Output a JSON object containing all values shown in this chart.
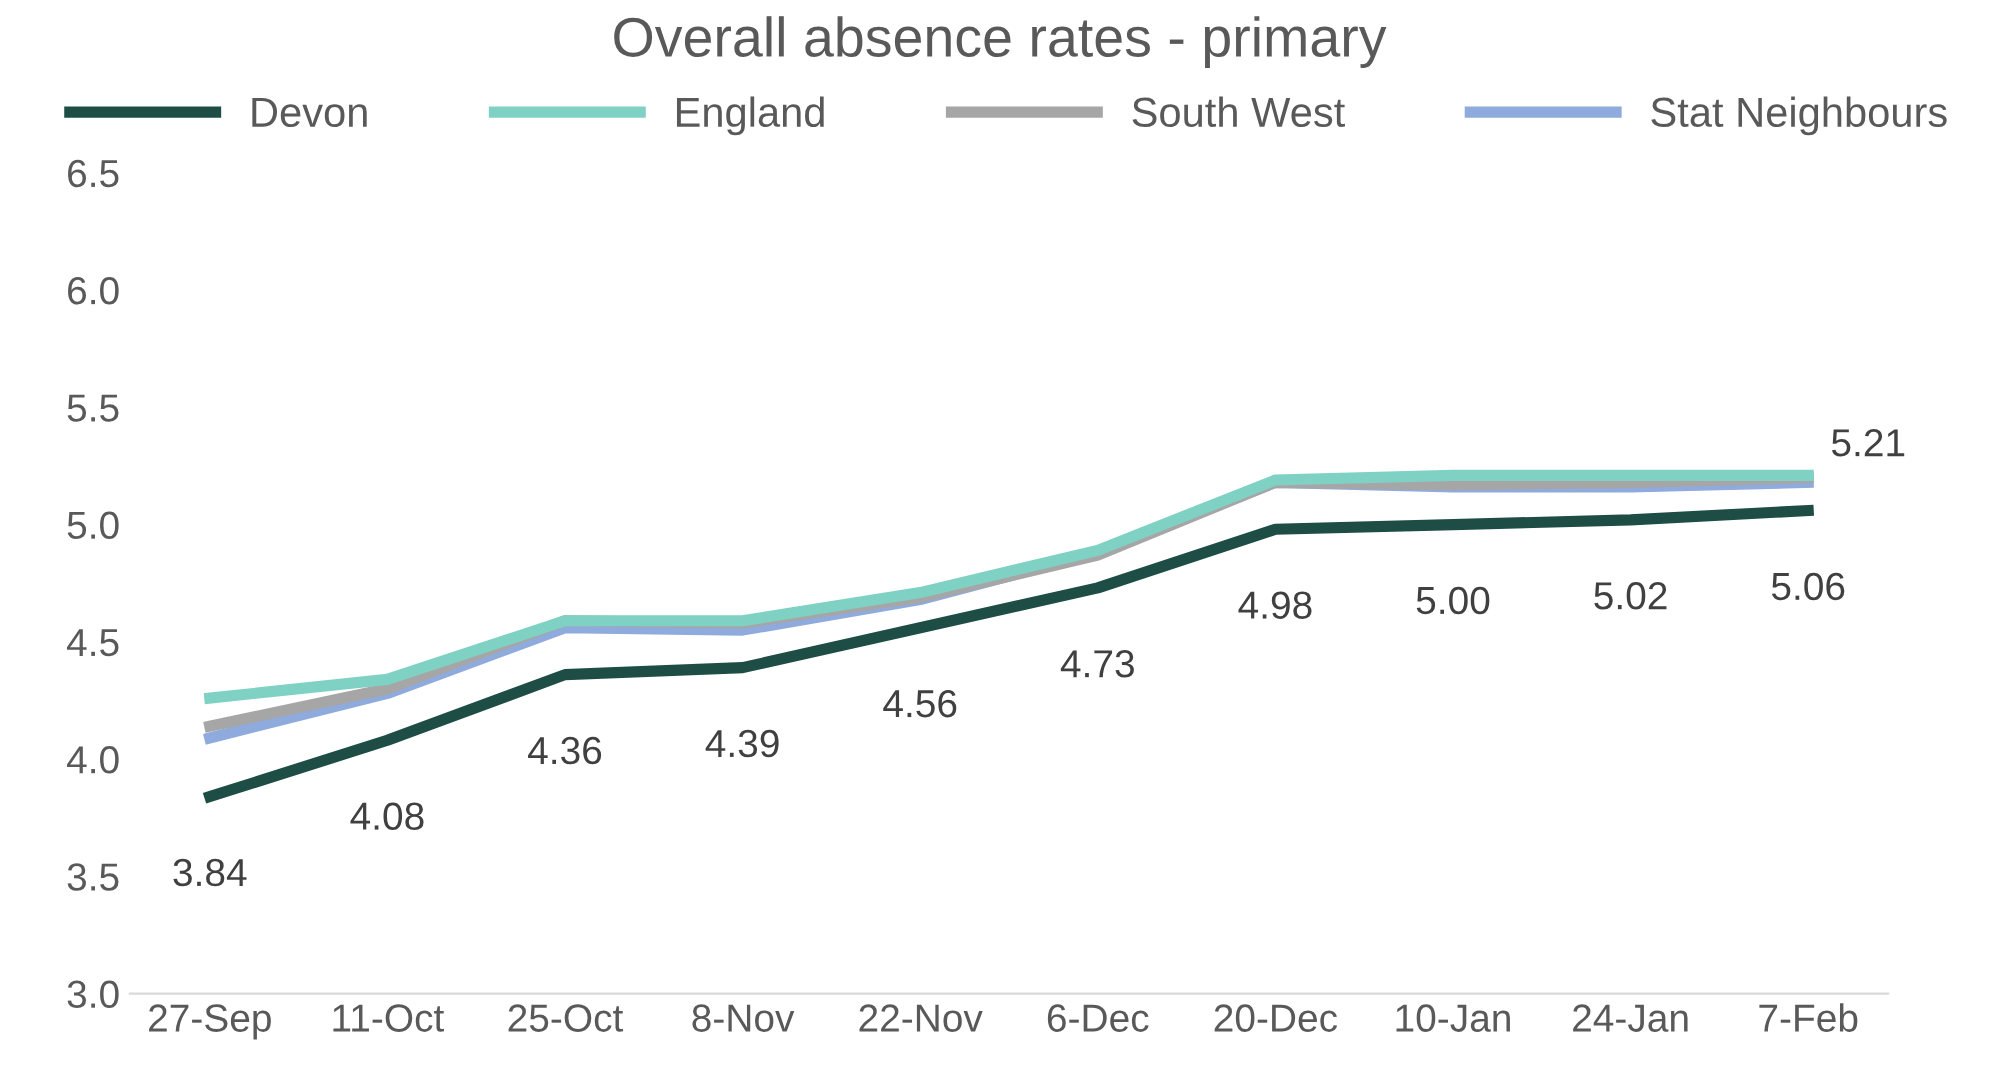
{
  "chart_data": {
    "type": "line",
    "title": "Overall absence rates - primary",
    "categories": [
      "27-Sep",
      "11-Oct",
      "25-Oct",
      "8-Nov",
      "22-Nov",
      "6-Dec",
      "20-Dec",
      "10-Jan",
      "24-Jan",
      "7-Feb"
    ],
    "series": [
      {
        "name": "Devon",
        "color": "#1e4d45",
        "values": [
          3.84,
          4.08,
          4.36,
          4.39,
          4.56,
          4.73,
          4.98,
          5.0,
          5.02,
          5.06
        ],
        "data_labels": true,
        "value_labels": [
          "3.84",
          "4.08",
          "4.36",
          "4.39",
          "4.56",
          "4.73",
          "4.98",
          "5.00",
          "5.02",
          "5.06"
        ]
      },
      {
        "name": "England",
        "color": "#7fd1c4",
        "values": [
          4.26,
          4.34,
          4.59,
          4.59,
          4.71,
          4.89,
          5.19,
          5.21,
          5.21,
          5.21
        ]
      },
      {
        "name": "South West",
        "color": "#a6a6a6",
        "values": [
          4.14,
          4.3,
          4.59,
          4.58,
          4.69,
          4.87,
          5.18,
          5.17,
          5.18,
          5.2
        ]
      },
      {
        "name": "Stat Neighbours",
        "color": "#8faadc",
        "values": [
          4.09,
          4.28,
          4.56,
          4.55,
          4.68,
          4.88,
          5.18,
          5.16,
          5.16,
          5.18
        ]
      }
    ],
    "annotations": [
      {
        "text": "5.21",
        "x": "7-Feb",
        "y": 5.21
      }
    ],
    "ylim": [
      3.0,
      6.5
    ],
    "yticks": [
      {
        "value": 3.0,
        "label": "3.0"
      },
      {
        "value": 3.5,
        "label": "3.5"
      },
      {
        "value": 4.0,
        "label": "4.0"
      },
      {
        "value": 4.5,
        "label": "4.5"
      },
      {
        "value": 5.0,
        "label": "5.0"
      },
      {
        "value": 5.5,
        "label": "5.5"
      },
      {
        "value": 6.0,
        "label": "6.0"
      },
      {
        "value": 6.5,
        "label": "6.5"
      }
    ],
    "grid": false,
    "legend": "top",
    "marker": "none",
    "line_style": "solid"
  }
}
